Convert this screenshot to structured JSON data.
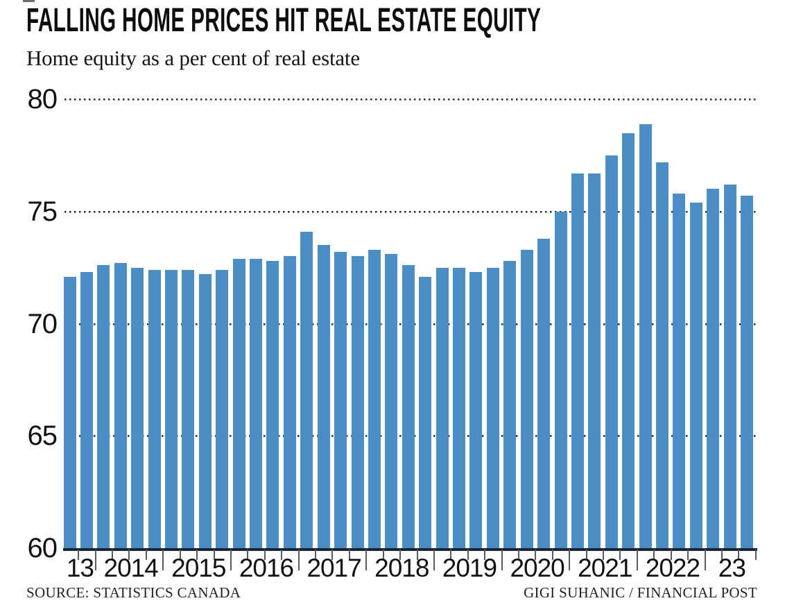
{
  "header": {
    "title": "FALLING HOME PRICES HIT REAL ESTATE EQUITY",
    "subtitle": "Home equity as a per cent of real estate"
  },
  "footer": {
    "source": "SOURCE: STATISTICS CANADA",
    "credit": "GIGI SUHANIC / FINANCIAL POST"
  },
  "colors": {
    "bar": "#4a8ec5",
    "baseline": "#1b2430",
    "grid_dots": "#2e2e2e",
    "tick": "#5a5a5a",
    "text": "#111111"
  },
  "chart_data": {
    "type": "bar",
    "title": "FALLING HOME PRICES HIT REAL ESTATE EQUITY",
    "subtitle": "Home equity as a per cent of real estate",
    "xlabel": "",
    "ylabel": "Home equity as a per cent of real estate",
    "ylim": [
      60,
      80
    ],
    "y_ticks": [
      60,
      65,
      70,
      75,
      80
    ],
    "grid": "dotted-horizontal",
    "legend_position": "none",
    "x_axis_labels": [
      "13",
      "2014",
      "2015",
      "2016",
      "2017",
      "2018",
      "2019",
      "2020",
      "2021",
      "2022",
      "23"
    ],
    "series": [
      {
        "name": "Home equity as a per cent of real estate",
        "points": [
          {
            "period": "2013 Q3",
            "value": 72.1
          },
          {
            "period": "2013 Q4",
            "value": 72.3
          },
          {
            "period": "2014 Q1",
            "value": 72.6
          },
          {
            "period": "2014 Q2",
            "value": 72.7
          },
          {
            "period": "2014 Q3",
            "value": 72.5
          },
          {
            "period": "2014 Q4",
            "value": 72.4
          },
          {
            "period": "2015 Q1",
            "value": 72.4
          },
          {
            "period": "2015 Q2",
            "value": 72.4
          },
          {
            "period": "2015 Q3",
            "value": 72.2
          },
          {
            "period": "2015 Q4",
            "value": 72.4
          },
          {
            "period": "2016 Q1",
            "value": 72.9
          },
          {
            "period": "2016 Q2",
            "value": 72.9
          },
          {
            "period": "2016 Q3",
            "value": 72.8
          },
          {
            "period": "2016 Q4",
            "value": 73.0
          },
          {
            "period": "2017 Q1",
            "value": 74.1
          },
          {
            "period": "2017 Q2",
            "value": 73.5
          },
          {
            "period": "2017 Q3",
            "value": 73.2
          },
          {
            "period": "2017 Q4",
            "value": 73.0
          },
          {
            "period": "2018 Q1",
            "value": 73.3
          },
          {
            "period": "2018 Q2",
            "value": 73.1
          },
          {
            "period": "2018 Q3",
            "value": 72.6
          },
          {
            "period": "2018 Q4",
            "value": 72.1
          },
          {
            "period": "2019 Q1",
            "value": 72.5
          },
          {
            "period": "2019 Q2",
            "value": 72.5
          },
          {
            "period": "2019 Q3",
            "value": 72.3
          },
          {
            "period": "2019 Q4",
            "value": 72.5
          },
          {
            "period": "2020 Q1",
            "value": 72.8
          },
          {
            "period": "2020 Q2",
            "value": 73.3
          },
          {
            "period": "2020 Q3",
            "value": 73.8
          },
          {
            "period": "2020 Q4",
            "value": 75.0
          },
          {
            "period": "2021 Q1",
            "value": 76.7
          },
          {
            "period": "2021 Q2",
            "value": 76.7
          },
          {
            "period": "2021 Q3",
            "value": 77.5
          },
          {
            "period": "2021 Q4",
            "value": 78.5
          },
          {
            "period": "2022 Q1",
            "value": 78.9
          },
          {
            "period": "2022 Q2",
            "value": 77.2
          },
          {
            "period": "2022 Q3",
            "value": 75.8
          },
          {
            "period": "2022 Q4",
            "value": 75.4
          },
          {
            "period": "2023 Q1",
            "value": 76.0
          },
          {
            "period": "2023 Q2",
            "value": 76.2
          },
          {
            "period": "2023 Q3",
            "value": 75.7
          }
        ]
      }
    ]
  }
}
